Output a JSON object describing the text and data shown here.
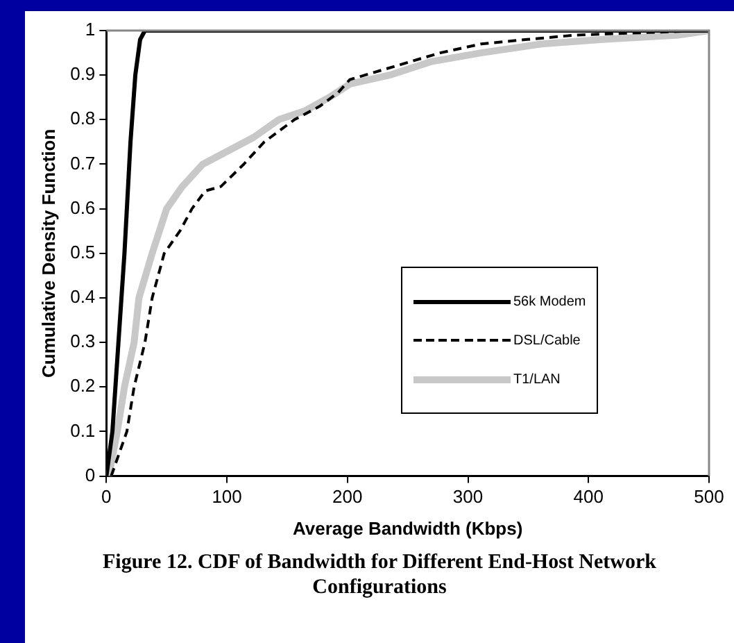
{
  "chart_data": {
    "type": "line",
    "title": "Figure 12. CDF of Bandwidth for Different End-Host Network Configurations",
    "xlabel": "Average Bandwidth (Kbps)",
    "ylabel": "Cumulative Density Function",
    "xlim": [
      0,
      500
    ],
    "xticks": [
      0,
      100,
      200,
      300,
      400,
      500
    ],
    "ylim": [
      0,
      1
    ],
    "yticks": [
      0,
      0.1,
      0.2,
      0.3,
      0.4,
      0.5,
      0.6,
      0.7,
      0.8,
      0.9,
      1
    ],
    "grid": false,
    "legend": "right",
    "marker": "none",
    "series": [
      {
        "name": "56k Modem",
        "color": "#000000",
        "line_style": "solid",
        "x": [
          0,
          5,
          10,
          15,
          20,
          24,
          28,
          32,
          500
        ],
        "values": [
          0,
          0.1,
          0.3,
          0.5,
          0.75,
          0.9,
          0.98,
          1,
          1
        ]
      },
      {
        "name": "DSL/Cable",
        "color": "#000000",
        "line_style": "dashed",
        "x": [
          4,
          17,
          23,
          32,
          38,
          48,
          61,
          71,
          82,
          95,
          114,
          131,
          156,
          177,
          192,
          202,
          227,
          252,
          277,
          311,
          349,
          390,
          495
        ],
        "values": [
          0,
          0.1,
          0.2,
          0.3,
          0.4,
          0.5,
          0.55,
          0.6,
          0.64,
          0.65,
          0.7,
          0.75,
          0.8,
          0.83,
          0.86,
          0.89,
          0.91,
          0.93,
          0.95,
          0.97,
          0.98,
          0.99,
          1
        ]
      },
      {
        "name": "T1/LAN",
        "color": "#c8c8c8",
        "line_style": "solid",
        "x": [
          2,
          9,
          15,
          23,
          27,
          38,
          50,
          63,
          80,
          101,
          122,
          143,
          165,
          185,
          202,
          235,
          269,
          311,
          361,
          412,
          475,
          500
        ],
        "values": [
          0,
          0.1,
          0.2,
          0.3,
          0.4,
          0.5,
          0.6,
          0.65,
          0.7,
          0.73,
          0.76,
          0.8,
          0.82,
          0.85,
          0.88,
          0.9,
          0.93,
          0.95,
          0.97,
          0.98,
          0.99,
          1
        ]
      }
    ]
  }
}
